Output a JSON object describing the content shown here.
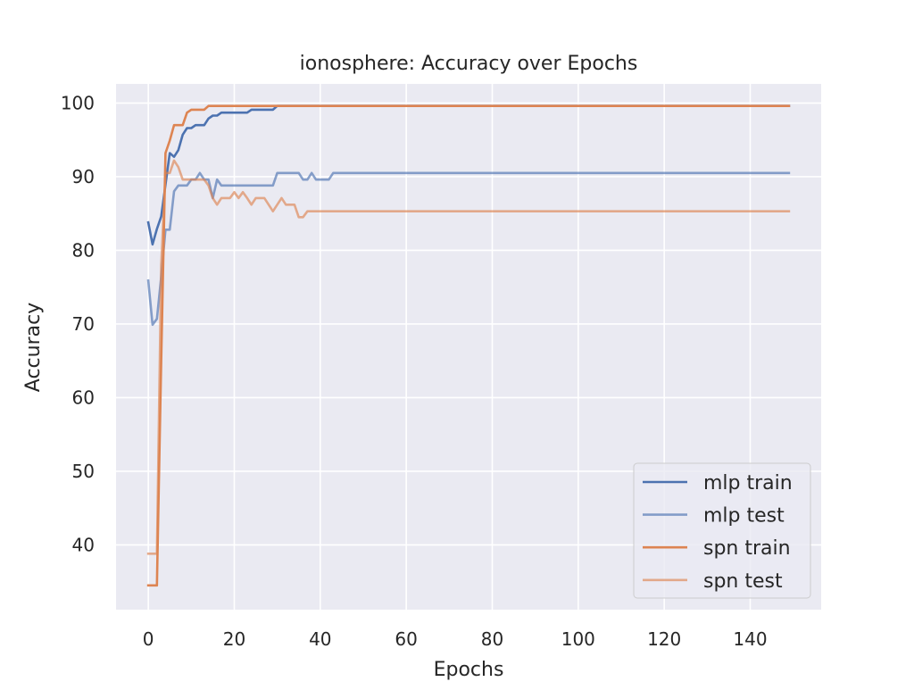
{
  "chart_data": {
    "type": "line",
    "title": "ionosphere: Accuracy over Epochs",
    "xlabel": "Epochs",
    "ylabel": "Accuracy",
    "xlim": [
      -7.5,
      156.5
    ],
    "ylim": [
      31.2,
      102.6
    ],
    "xticks": [
      0,
      20,
      40,
      60,
      80,
      100,
      120,
      140
    ],
    "yticks": [
      40,
      50,
      60,
      70,
      80,
      90,
      100
    ],
    "grid": true,
    "legend_position": "lower right",
    "series": [
      {
        "name": "mlp train",
        "color": "#4c72b0",
        "opacity": 1.0,
        "points": [
          [
            0,
            83.8
          ],
          [
            1,
            80.8
          ],
          [
            2,
            82.9
          ],
          [
            3,
            84.6
          ],
          [
            4,
            88.9
          ],
          [
            5,
            93.2
          ],
          [
            6,
            92.7
          ],
          [
            7,
            93.6
          ],
          [
            8,
            95.7
          ],
          [
            9,
            96.6
          ],
          [
            10,
            96.6
          ],
          [
            11,
            97.0
          ],
          [
            12,
            97.0
          ],
          [
            13,
            97.0
          ],
          [
            14,
            97.9
          ],
          [
            15,
            98.3
          ],
          [
            16,
            98.3
          ],
          [
            17,
            98.7
          ],
          [
            20,
            98.7
          ],
          [
            22,
            98.7
          ],
          [
            23,
            98.7
          ],
          [
            24,
            99.1
          ],
          [
            27,
            99.1
          ],
          [
            29,
            99.1
          ],
          [
            30,
            99.6
          ],
          [
            149,
            99.6
          ]
        ]
      },
      {
        "name": "mlp test",
        "color": "#4c72b0",
        "opacity": 0.65,
        "points": [
          [
            0,
            75.9
          ],
          [
            1,
            69.9
          ],
          [
            2,
            70.7
          ],
          [
            3,
            76.4
          ],
          [
            4,
            82.8
          ],
          [
            5,
            82.8
          ],
          [
            6,
            88.0
          ],
          [
            7,
            88.8
          ],
          [
            8,
            88.8
          ],
          [
            9,
            88.8
          ],
          [
            10,
            89.6
          ],
          [
            11,
            89.6
          ],
          [
            12,
            90.5
          ],
          [
            13,
            89.6
          ],
          [
            14,
            89.6
          ],
          [
            15,
            87.1
          ],
          [
            16,
            89.6
          ],
          [
            17,
            88.8
          ],
          [
            20,
            88.8
          ],
          [
            25,
            88.8
          ],
          [
            28,
            88.8
          ],
          [
            29,
            88.8
          ],
          [
            30,
            90.5
          ],
          [
            35,
            90.5
          ],
          [
            36,
            89.6
          ],
          [
            37,
            89.6
          ],
          [
            38,
            90.5
          ],
          [
            39,
            89.6
          ],
          [
            42,
            89.6
          ],
          [
            43,
            90.5
          ],
          [
            149,
            90.5
          ]
        ]
      },
      {
        "name": "spn train",
        "color": "#dd8452",
        "opacity": 1.0,
        "points": [
          [
            0,
            34.5
          ],
          [
            1,
            34.5
          ],
          [
            2,
            34.5
          ],
          [
            3,
            65.0
          ],
          [
            4,
            93.2
          ],
          [
            5,
            94.9
          ],
          [
            6,
            97.0
          ],
          [
            7,
            97.0
          ],
          [
            8,
            97.0
          ],
          [
            9,
            98.7
          ],
          [
            10,
            99.1
          ],
          [
            11,
            99.1
          ],
          [
            12,
            99.1
          ],
          [
            13,
            99.1
          ],
          [
            14,
            99.6
          ],
          [
            149,
            99.6
          ]
        ]
      },
      {
        "name": "spn test",
        "color": "#dd8452",
        "opacity": 0.65,
        "points": [
          [
            0,
            38.8
          ],
          [
            1,
            38.8
          ],
          [
            2,
            38.8
          ],
          [
            3,
            78.0
          ],
          [
            4,
            90.5
          ],
          [
            5,
            90.5
          ],
          [
            6,
            92.2
          ],
          [
            7,
            91.3
          ],
          [
            8,
            89.6
          ],
          [
            9,
            89.6
          ],
          [
            10,
            89.6
          ],
          [
            11,
            89.6
          ],
          [
            12,
            89.6
          ],
          [
            13,
            89.6
          ],
          [
            14,
            88.8
          ],
          [
            15,
            87.1
          ],
          [
            16,
            86.2
          ],
          [
            17,
            87.1
          ],
          [
            18,
            87.1
          ],
          [
            19,
            87.1
          ],
          [
            20,
            87.9
          ],
          [
            21,
            87.1
          ],
          [
            22,
            87.9
          ],
          [
            23,
            87.1
          ],
          [
            24,
            86.2
          ],
          [
            25,
            87.1
          ],
          [
            26,
            87.1
          ],
          [
            27,
            87.1
          ],
          [
            28,
            86.2
          ],
          [
            29,
            85.3
          ],
          [
            30,
            86.2
          ],
          [
            31,
            87.1
          ],
          [
            32,
            86.2
          ],
          [
            33,
            86.2
          ],
          [
            34,
            86.2
          ],
          [
            35,
            84.5
          ],
          [
            36,
            84.5
          ],
          [
            37,
            85.3
          ],
          [
            149,
            85.3
          ]
        ]
      }
    ]
  }
}
